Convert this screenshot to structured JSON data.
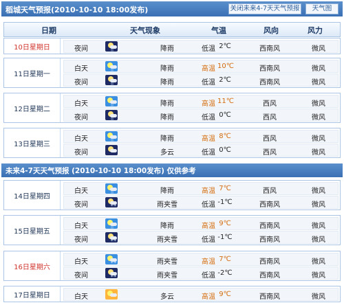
{
  "header": {
    "title": "稻城天气预报(2010-10-10  18:00发布)",
    "close_btn": "关闭未来4-7天天气预报",
    "map_btn": "天气图"
  },
  "columns": [
    "日期",
    "天气现象",
    "气温",
    "风向",
    "风力"
  ],
  "days": [
    {
      "date": "10日星期日",
      "red": true,
      "rows": [
        {
          "period": "夜间",
          "icon": "night-rain-icon",
          "desc": "降雨",
          "temp_label": "低温",
          "temp": "2℃",
          "wind_dir": "西南风",
          "wind_power": "微风"
        }
      ]
    },
    {
      "date": "11日星期一",
      "rows": [
        {
          "period": "白天",
          "icon": "day-rain-icon",
          "desc": "降雨",
          "temp_label": "高温",
          "temp": "10℃",
          "wind_dir": "西南风",
          "wind_power": "微风"
        },
        {
          "period": "夜间",
          "icon": "night-rain-icon",
          "desc": "降雨",
          "temp_label": "低温",
          "temp": "2℃",
          "wind_dir": "西南风",
          "wind_power": "微风"
        }
      ]
    },
    {
      "date": "12日星期二",
      "rows": [
        {
          "period": "白天",
          "icon": "day-rain-icon",
          "desc": "降雨",
          "temp_label": "高温",
          "temp": "11℃",
          "wind_dir": "西风",
          "wind_power": "微风"
        },
        {
          "period": "夜间",
          "icon": "night-rain-icon",
          "desc": "降雨",
          "temp_label": "低温",
          "temp": "0℃",
          "wind_dir": "西风",
          "wind_power": "微风"
        }
      ]
    },
    {
      "date": "13日星期三",
      "rows": [
        {
          "period": "白天",
          "icon": "day-rain-icon",
          "desc": "降雨",
          "temp_label": "高温",
          "temp": "8℃",
          "wind_dir": "西风",
          "wind_power": "微风"
        },
        {
          "period": "夜间",
          "icon": "night-cloudy-icon",
          "desc": "多云",
          "temp_label": "低温",
          "temp": "0℃",
          "wind_dir": "西风",
          "wind_power": "微风"
        }
      ]
    }
  ],
  "section2": {
    "title": "未来4-7天天气预报 (2010-10-10 18:00发布)    仅供参考"
  },
  "days2": [
    {
      "date": "14日星期四",
      "rows": [
        {
          "period": "白天",
          "icon": "day-rain-icon",
          "desc": "降雨",
          "temp_label": "高温",
          "temp": "7℃",
          "wind_dir": "西风",
          "wind_power": "微风"
        },
        {
          "period": "夜间",
          "icon": "night-sleet-icon",
          "desc": "雨夹雪",
          "temp_label": "低温",
          "temp": "-1℃",
          "wind_dir": "西南风",
          "wind_power": "微风"
        }
      ]
    },
    {
      "date": "15日星期五",
      "rows": [
        {
          "period": "白天",
          "icon": "day-rain-icon",
          "desc": "降雨",
          "temp_label": "高温",
          "temp": "9℃",
          "wind_dir": "西南风",
          "wind_power": "微风"
        },
        {
          "period": "夜间",
          "icon": "night-sleet-icon",
          "desc": "雨夹雪",
          "temp_label": "低温",
          "temp": "-1℃",
          "wind_dir": "西南风",
          "wind_power": "微风"
        }
      ]
    },
    {
      "date": "16日星期六",
      "red": true,
      "rows": [
        {
          "period": "白天",
          "icon": "day-sleet-icon",
          "desc": "雨夹雪",
          "temp_label": "高温",
          "temp": "7℃",
          "wind_dir": "西南风",
          "wind_power": "微风"
        },
        {
          "period": "夜间",
          "icon": "night-sleet-icon",
          "desc": "雨夹雪",
          "temp_label": "低温",
          "temp": "-2℃",
          "wind_dir": "西南风",
          "wind_power": "微风"
        }
      ]
    },
    {
      "date": "17日星期日",
      "rows": [
        {
          "period": "白天",
          "icon": "sunny-cloudy-icon",
          "desc": "多云",
          "temp_label": "高温",
          "temp": "9℃",
          "wind_dir": "西南风",
          "wind_power": "微风"
        }
      ]
    }
  ]
}
